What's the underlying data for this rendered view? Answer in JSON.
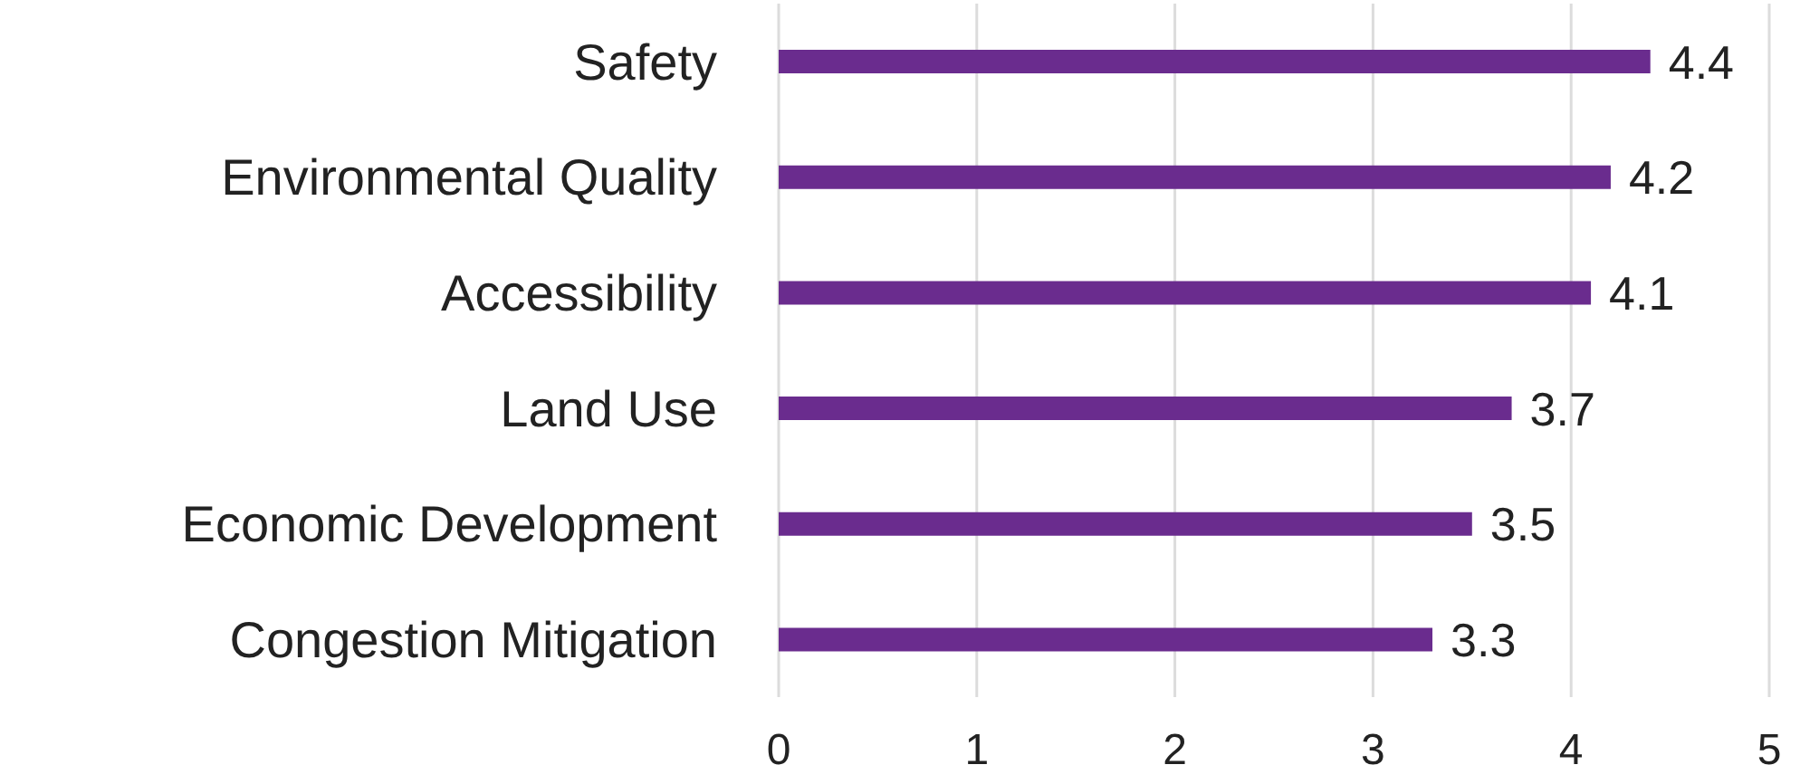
{
  "chart_data": {
    "type": "bar",
    "orientation": "horizontal",
    "categories": [
      "Safety",
      "Environmental Quality",
      "Accessibility",
      "Land Use",
      "Economic Development",
      "Congestion Mitigation"
    ],
    "values": [
      4.4,
      4.2,
      4.1,
      3.7,
      3.5,
      3.3
    ],
    "color": "#6a2c8e",
    "xlim": [
      0,
      5
    ],
    "xticks": [
      0,
      1,
      2,
      3,
      4,
      5
    ],
    "grid": "x",
    "data_labels": true
  }
}
